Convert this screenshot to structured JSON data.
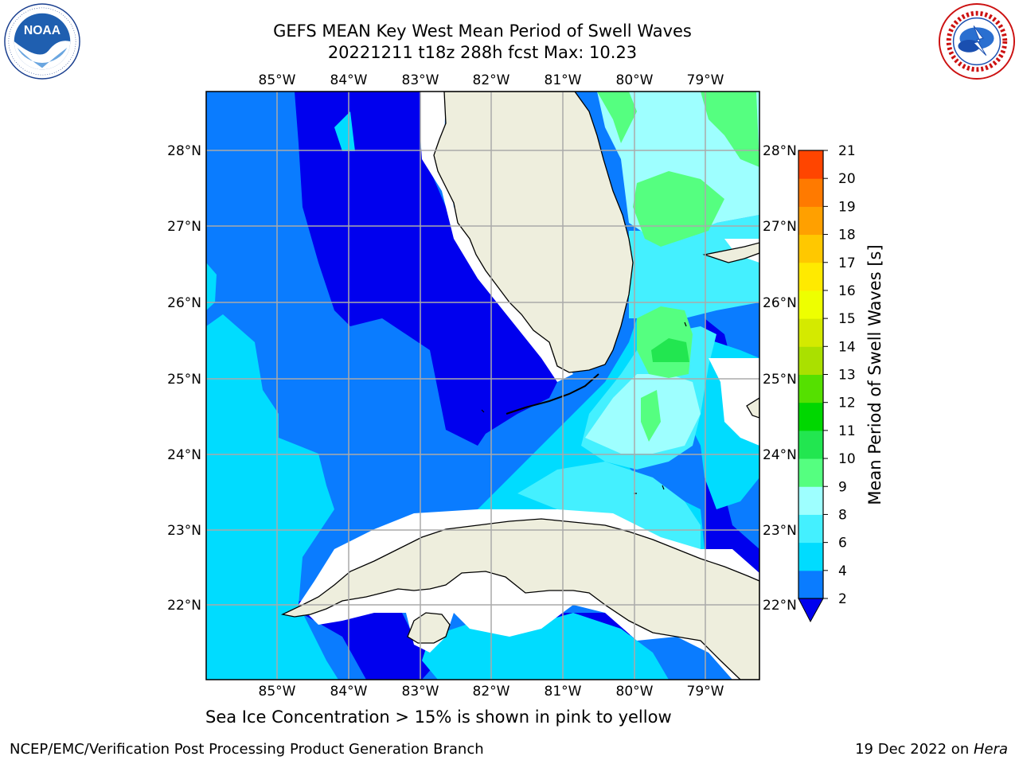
{
  "title": {
    "line1": "GEFS MEAN Key West Mean Period of Swell Waves",
    "line2": "20221211 t18z 288h fcst   Max: 10.23"
  },
  "map": {
    "lon_labels": [
      "85°W",
      "84°W",
      "83°W",
      "82°W",
      "81°W",
      "80°W",
      "79°W"
    ],
    "lat_labels": [
      "28°N",
      "27°N",
      "26°N",
      "25°N",
      "24°N",
      "23°N",
      "22°N"
    ],
    "colors": {
      "land": "#eeeedd",
      "land_edge": "#000000",
      "grid": "#aaaaaa",
      "ice_nodata": "#ffffff"
    }
  },
  "colorbar": {
    "label": "Mean Period of Swell Waves [s]",
    "ticks": [
      "2",
      "4",
      "6",
      "8",
      "9",
      "10",
      "11",
      "12",
      "13",
      "14",
      "15",
      "16",
      "17",
      "18",
      "19",
      "20",
      "21"
    ],
    "colors": [
      "#0a7cff",
      "#00dcff",
      "#44f0ff",
      "#9effff",
      "#55ff80",
      "#22e650",
      "#00d700",
      "#55e000",
      "#aae000",
      "#d4ea00",
      "#eeff00",
      "#ffea00",
      "#ffc800",
      "#ffa000",
      "#ff7a00",
      "#ff4500",
      "#ff1400"
    ],
    "under_color": "#0000ee"
  },
  "caption": "Sea Ice Concentration > 15% is shown in pink to yellow",
  "footer": {
    "left": "NCEP/EMC/Verification Post Processing Product Generation Branch",
    "right_prefix": "19 Dec 2022 on ",
    "right_host": "Hera"
  }
}
